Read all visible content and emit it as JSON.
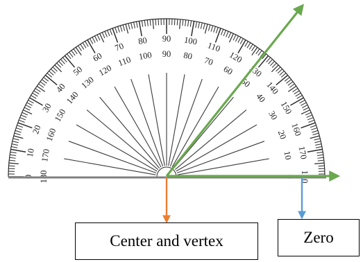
{
  "protractor": {
    "outer_scale": [
      "0",
      "10",
      "20",
      "30",
      "40",
      "50",
      "60",
      "70",
      "80",
      "90",
      "100",
      "110",
      "120",
      "130",
      "140",
      "150",
      "160",
      "170",
      "180"
    ],
    "inner_scale": [
      "180",
      "170",
      "160",
      "150",
      "140",
      "130",
      "120",
      "110",
      "100",
      "90",
      "80",
      "70",
      "60",
      "50",
      "40",
      "30",
      "20",
      "10",
      "0"
    ]
  },
  "annotations": {
    "center_label": "Center and vertex",
    "zero_label": "Zero"
  },
  "colors": {
    "angle_rays": "#6aa84f",
    "center_arrow": "#ed7d31",
    "zero_arrow": "#5b9bd5",
    "scale_ink": "#2a2a2a",
    "baseline": "#808080"
  }
}
